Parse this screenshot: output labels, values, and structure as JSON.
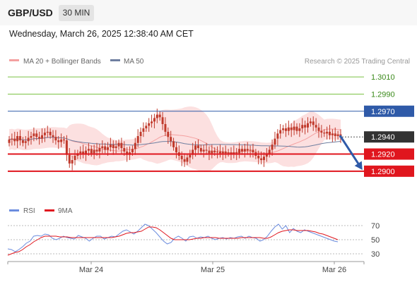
{
  "header": {
    "symbol": "GBP/USD",
    "timeframe": "30 MIN",
    "datetime": "Wednesday, March 26, 2025 12:38:40 AM CET"
  },
  "legend": {
    "ma20_bb": "MA 20 + Bollinger Bands",
    "ma50": "MA 50",
    "credit": "Research © 2025 Trading Central",
    "rsi": "RSI",
    "ma9": "9MA"
  },
  "colors": {
    "candle": "#c0392b",
    "bb_fill": "#fbd5d5",
    "ma20": "#f4a0a0",
    "ma50": "#6f7fa0",
    "green_level": "#7ac143",
    "blue_level": "#2f5aa8",
    "red_level": "#e0161e",
    "current_label": "#333333",
    "arrow": "#2f5aa8",
    "rsi_line": "#6b8cde",
    "rsi_ma": "#e0161e"
  },
  "chart_data": [
    {
      "type": "candlestick",
      "instrument": "GBP/USD",
      "interval": "30 MIN",
      "x_tick_labels": [
        "Mar 24",
        "Mar 25",
        "Mar 26"
      ],
      "price_levels": [
        {
          "value": 1.301,
          "label": "1.3010",
          "style": "green"
        },
        {
          "value": 1.299,
          "label": "1.2990",
          "style": "green"
        },
        {
          "value": 1.297,
          "label": "1.2970",
          "style": "blue"
        },
        {
          "value": 1.294,
          "label": "1.2940",
          "style": "current"
        },
        {
          "value": 1.292,
          "label": "1.2920",
          "style": "red"
        },
        {
          "value": 1.29,
          "label": "1.2900",
          "style": "red"
        }
      ],
      "current_price": 1.294,
      "forecast_arrow": {
        "from": 1.294,
        "to": 1.29
      },
      "ylim": [
        1.2876,
        1.302
      ],
      "close_series": [
        1.2937,
        1.2938,
        1.2935,
        1.2941,
        1.2936,
        1.2933,
        1.2935,
        1.2939,
        1.2941,
        1.2944,
        1.294,
        1.2938,
        1.2942,
        1.2945,
        1.2946,
        1.2942,
        1.294,
        1.2936,
        1.2934,
        1.2937,
        1.2936,
        1.2919,
        1.2909,
        1.2913,
        1.2918,
        1.2921,
        1.2923,
        1.292,
        1.2924,
        1.2926,
        1.2921,
        1.2925,
        1.2923,
        1.2927,
        1.2929,
        1.2925,
        1.2928,
        1.2931,
        1.2927,
        1.2929,
        1.2933,
        1.2927,
        1.2923,
        1.2919,
        1.2922,
        1.2926,
        1.2933,
        1.2941,
        1.2946,
        1.295,
        1.2953,
        1.2956,
        1.2958,
        1.2962,
        1.2966,
        1.2963,
        1.2955,
        1.2946,
        1.294,
        1.2935,
        1.2928,
        1.2922,
        1.2918,
        1.2914,
        1.2911,
        1.2916,
        1.2919,
        1.2925,
        1.293,
        1.2927,
        1.2923,
        1.2925,
        1.2924,
        1.2921,
        1.2924,
        1.2922,
        1.2923,
        1.2921,
        1.2923,
        1.2921,
        1.2922,
        1.292,
        1.2922,
        1.2921,
        1.2926,
        1.2923,
        1.2926,
        1.2924,
        1.2925,
        1.2922,
        1.2918,
        1.2915,
        1.2913,
        1.2917,
        1.292,
        1.2925,
        1.2931,
        1.2938,
        1.2944,
        1.2948,
        1.295,
        1.2947,
        1.2951,
        1.2948,
        1.2952,
        1.2947,
        1.295,
        1.2954,
        1.2951,
        1.2956,
        1.2958,
        1.2954,
        1.2951,
        1.2947,
        1.2945,
        1.2944,
        1.2946,
        1.2942,
        1.2944,
        1.2941,
        1.2943,
        1.294
      ]
    },
    {
      "type": "line",
      "name": "RSI",
      "y_tick_labels": [
        "70",
        "50",
        "30"
      ],
      "ylim": [
        20,
        80
      ],
      "series": [
        {
          "name": "RSI",
          "values": [
            37,
            36,
            33,
            36,
            40,
            45,
            48,
            55,
            56,
            55,
            58,
            57,
            52,
            50,
            52,
            55,
            53,
            52,
            51,
            56,
            54,
            52,
            48,
            52,
            55,
            55,
            51,
            53,
            55,
            54,
            58,
            62,
            64,
            61,
            58,
            62,
            67,
            72,
            70,
            65,
            60,
            54,
            48,
            44,
            46,
            52,
            55,
            52,
            48,
            54,
            55,
            52,
            54,
            53,
            55,
            52,
            50,
            52,
            53,
            51,
            53,
            52,
            54,
            55,
            52,
            55,
            53,
            52,
            48,
            50,
            55,
            62,
            68,
            72,
            65,
            70,
            60,
            66,
            62,
            60,
            64,
            62,
            60,
            58,
            56,
            54,
            52,
            50,
            48,
            47
          ]
        },
        {
          "name": "9MA",
          "values": [
            28,
            30,
            32,
            33,
            36,
            40,
            43,
            47,
            50,
            53,
            55,
            55,
            55,
            55,
            54,
            54,
            54,
            53,
            53,
            53,
            53,
            53,
            53,
            53,
            53,
            53,
            53,
            53,
            53,
            54,
            55,
            57,
            59,
            60,
            60,
            61,
            62,
            65,
            68,
            68,
            67,
            64,
            60,
            56,
            52,
            50,
            50,
            50,
            50,
            50,
            51,
            52,
            52,
            53,
            53,
            53,
            53,
            52,
            52,
            52,
            52,
            52,
            52,
            53,
            53,
            53,
            53,
            53,
            53,
            52,
            52,
            54,
            57,
            60,
            62,
            63,
            64,
            64,
            63,
            63,
            63,
            63,
            62,
            61,
            59,
            58,
            56,
            54,
            52,
            50
          ]
        }
      ]
    }
  ]
}
